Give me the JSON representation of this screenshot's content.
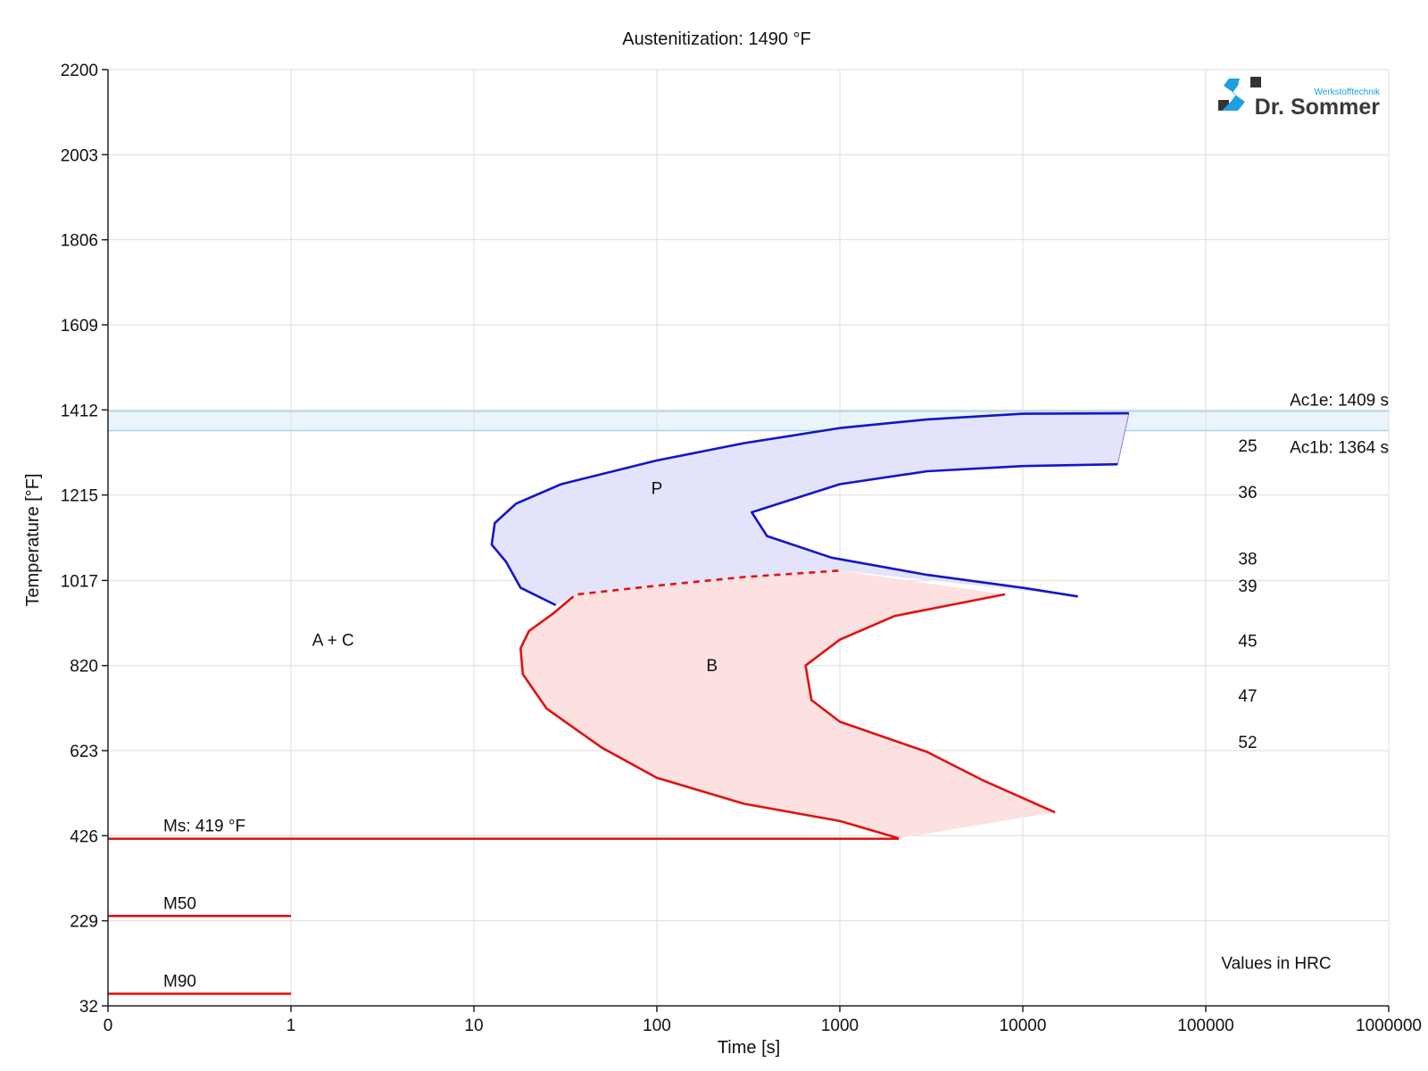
{
  "chart_data": {
    "type": "line",
    "title": "Austenitization: 1490 °F",
    "xlabel": "Time [s]",
    "ylabel": "Temperature [°F]",
    "x_scale": "log",
    "x_ticks": [
      {
        "value": 1,
        "label": "0"
      },
      {
        "value": 10,
        "label": "1"
      },
      {
        "value": 100,
        "label": "10"
      },
      {
        "value": 1000,
        "label": "100"
      },
      {
        "value": 10000,
        "label": "1000"
      },
      {
        "value": 100000,
        "label": "10000"
      },
      {
        "value": 1000000,
        "label": "100000"
      },
      {
        "value": 10000000,
        "label": "1000000"
      }
    ],
    "y_ticks": [
      32,
      229,
      426,
      623,
      820,
      1017,
      1215,
      1412,
      1609,
      1806,
      2003,
      2200
    ],
    "ylim": [
      32,
      2200
    ],
    "grid": true,
    "colors": {
      "pearlite_line": "#1515c8",
      "pearlite_fill": "#e3e4fb",
      "bainite_line": "#e01212",
      "bainite_fill": "#fde1e1",
      "ac_band": "#eaf5fb",
      "ac_line": "#a9d6ea"
    },
    "ac_lines": [
      {
        "label": "Ac1e: 1409 s",
        "temperature": 1409
      },
      {
        "label": "Ac1b: 1364 s",
        "temperature": 1364
      }
    ],
    "regions": [
      {
        "label": "P",
        "time": 1000,
        "temperature": 1232
      },
      {
        "label": "B",
        "time": 2000,
        "temperature": 822
      },
      {
        "label": "A + C",
        "time": 17,
        "temperature": 880
      }
    ],
    "series": [
      {
        "role": "pearlite-start",
        "points": [
          [
            280,
            960
          ],
          [
            180,
            1000
          ],
          [
            150,
            1060
          ],
          [
            125,
            1100
          ],
          [
            130,
            1150
          ],
          [
            170,
            1195
          ],
          [
            300,
            1240
          ],
          [
            1000,
            1295
          ],
          [
            3000,
            1335
          ],
          [
            10000,
            1370
          ],
          [
            30000,
            1390
          ],
          [
            100000,
            1403
          ],
          [
            380000,
            1404
          ]
        ]
      },
      {
        "role": "pearlite-finish",
        "points": [
          [
            330000,
            1286
          ],
          [
            100000,
            1282
          ],
          [
            30000,
            1270
          ],
          [
            10000,
            1240
          ],
          [
            6000,
            1210
          ],
          [
            3300,
            1175
          ],
          [
            4000,
            1120
          ],
          [
            9000,
            1070
          ],
          [
            30000,
            1030
          ],
          [
            100000,
            1000
          ],
          [
            200000,
            980
          ]
        ]
      },
      {
        "role": "bainite-start",
        "points": [
          [
            350,
            980
          ],
          [
            270,
            940
          ],
          [
            200,
            900
          ],
          [
            180,
            860
          ],
          [
            185,
            800
          ],
          [
            250,
            720
          ],
          [
            500,
            630
          ],
          [
            1000,
            560
          ],
          [
            3000,
            500
          ],
          [
            10000,
            460
          ],
          [
            21000,
            420
          ]
        ]
      },
      {
        "role": "bainite-finish",
        "points": [
          [
            80000,
            985
          ],
          [
            40000,
            960
          ],
          [
            20000,
            935
          ],
          [
            10000,
            880
          ],
          [
            6500,
            820
          ],
          [
            7000,
            740
          ],
          [
            10000,
            690
          ],
          [
            30000,
            620
          ],
          [
            60000,
            555
          ],
          [
            150000,
            480
          ]
        ]
      },
      {
        "role": "bainite-start-dashed",
        "points": [
          [
            370,
            985
          ],
          [
            1000,
            1005
          ],
          [
            3000,
            1025
          ],
          [
            10000,
            1040
          ]
        ]
      }
    ],
    "ms_lines": [
      {
        "label": "Ms: 419 °F",
        "temperature": 419,
        "x_end": 21000
      },
      {
        "label": "M50",
        "temperature": 240,
        "x_end": 10
      },
      {
        "label": "M90",
        "temperature": 60,
        "x_end": 10
      }
    ],
    "hardness_values": [
      {
        "label": "25",
        "temperature": 1330
      },
      {
        "label": "36",
        "temperature": 1222
      },
      {
        "label": "38",
        "temperature": 1068
      },
      {
        "label": "39",
        "temperature": 1005
      },
      {
        "label": "45",
        "temperature": 878
      },
      {
        "label": "47",
        "temperature": 751
      },
      {
        "label": "52",
        "temperature": 644
      }
    ],
    "hardness_note": "Values in HRC"
  },
  "logo": {
    "sub": "Werkstofftechnik",
    "main": "Dr. Sommer"
  }
}
